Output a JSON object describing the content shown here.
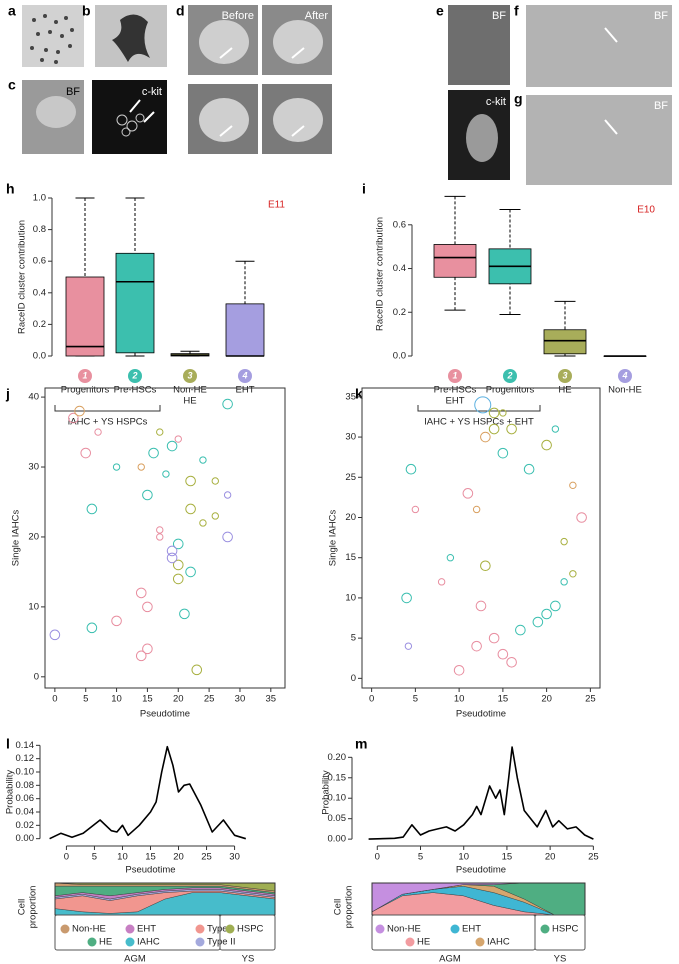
{
  "image_panels": [
    {
      "letter": "a"
    },
    {
      "letter": "b"
    },
    {
      "letter": "c",
      "labels": [
        "BF",
        "c-kit"
      ]
    },
    {
      "letter": "d",
      "labels": [
        "Before",
        "After"
      ]
    },
    {
      "letter": "e",
      "labels": [
        "BF",
        "c-kit"
      ]
    },
    {
      "letter": "f",
      "labels": [
        "BF"
      ]
    },
    {
      "letter": "g",
      "labels": [
        "BF"
      ]
    }
  ],
  "chart_data": [
    {
      "type": "box",
      "panel": "h",
      "tag": "E11",
      "ylabel": "RaceID cluster contribution",
      "ylim": [
        0,
        1
      ],
      "yticks": [
        {
          "value": 0,
          "label": "0.0"
        },
        0.2,
        0.4,
        0.6,
        0.8,
        {
          "value": 1,
          "label": "1.0"
        }
      ],
      "categories": [
        [
          "Progenitors"
        ],
        [
          "Pre-HSCs"
        ],
        [
          "Non-HE",
          "HE"
        ],
        [
          "EHT"
        ]
      ],
      "cluster_ids": [
        1,
        2,
        3,
        4
      ],
      "colors": [
        "#e8909f",
        "#3cbfae",
        "#a8ad5a",
        "#a59ee0"
      ],
      "boxes": [
        {
          "min": 0,
          "q1": 0,
          "median": 0.06,
          "q3": 0.5,
          "max": 1
        },
        {
          "min": 0,
          "q1": 0.02,
          "median": 0.47,
          "q3": 0.65,
          "max": 1
        },
        {
          "min": 0,
          "q1": 0,
          "median": 0.005,
          "q3": 0.015,
          "max": 0.03
        },
        {
          "min": 0,
          "q1": 0,
          "median": 0,
          "q3": 0.33,
          "max": 0.6
        }
      ],
      "group_label": "IAHC + YS HSPCs"
    },
    {
      "type": "box",
      "panel": "i",
      "tag": "E10",
      "ylabel": "RaceID cluster contribution",
      "ylim": [
        0,
        0.75
      ],
      "yticks": [
        {
          "value": 0,
          "label": "0.0"
        },
        0.2,
        0.4,
        0.6
      ],
      "categories": [
        [
          "Pre-HSCs",
          "EHT"
        ],
        [
          "Progenitors"
        ],
        [
          "HE"
        ],
        [
          "Non-HE"
        ]
      ],
      "cluster_ids": [
        1,
        2,
        3,
        4
      ],
      "colors": [
        "#e8909f",
        "#3cbfae",
        "#a8ad5a",
        "#a59ee0"
      ],
      "boxes": [
        {
          "min": 0.21,
          "q1": 0.36,
          "median": 0.45,
          "q3": 0.51,
          "max": 0.73
        },
        {
          "min": 0.19,
          "q1": 0.33,
          "median": 0.41,
          "q3": 0.49,
          "max": 0.67
        },
        {
          "min": 0,
          "q1": 0.01,
          "median": 0.07,
          "q3": 0.12,
          "max": 0.25
        },
        {
          "min": 0,
          "q1": 0,
          "median": 0,
          "q3": 0,
          "max": 0
        }
      ],
      "group_label": "IAHC + YS HSPCs + EHT"
    },
    {
      "type": "bubble",
      "panel": "j",
      "xlabel": "Pseudotime",
      "ylabel": "Single IAHCs",
      "xlim": [
        -1.6,
        37.3
      ],
      "xticks": [
        0,
        5,
        10,
        15,
        20,
        25,
        30,
        35
      ],
      "ylim": [
        -1.6,
        41.3
      ],
      "yticks": [
        0,
        10,
        20,
        30,
        40
      ],
      "series": [
        {
          "color": "#e88ea0",
          "x": [
            10,
            14,
            15,
            14,
            15,
            17,
            17,
            5,
            3,
            7,
            20
          ],
          "y": [
            8,
            3,
            4,
            12,
            10,
            20,
            21,
            32,
            37,
            35,
            34
          ],
          "sizes": [
            3,
            3,
            3,
            3,
            3,
            2,
            2,
            3,
            3,
            2,
            2
          ]
        },
        {
          "color": "#3bbfb0",
          "x": [
            6,
            21,
            22,
            20,
            15,
            24,
            6,
            28,
            19,
            16,
            10,
            18
          ],
          "y": [
            7,
            9,
            15,
            19,
            26,
            31,
            24,
            39,
            33,
            32,
            30,
            29
          ],
          "sizes": [
            3,
            3,
            3,
            3,
            3,
            2,
            3,
            3,
            3,
            3,
            2,
            2
          ]
        },
        {
          "color": "#a8b040",
          "x": [
            23,
            20,
            20,
            24,
            26,
            22,
            22,
            26,
            17
          ],
          "y": [
            1,
            14,
            16,
            22,
            23,
            24,
            28,
            28,
            35
          ],
          "sizes": [
            3,
            3,
            3,
            2,
            2,
            3,
            3,
            2,
            2
          ]
        },
        {
          "color": "#9a8fe0",
          "x": [
            0,
            19,
            19,
            28,
            28
          ],
          "y": [
            6,
            18,
            17,
            20,
            26
          ],
          "sizes": [
            3,
            3,
            3,
            3,
            2
          ]
        },
        {
          "color": "#d9a060",
          "x": [
            4,
            14
          ],
          "y": [
            38,
            30
          ],
          "sizes": [
            3,
            2
          ]
        }
      ]
    },
    {
      "type": "bubble",
      "panel": "k",
      "xlabel": "Pseudotime",
      "ylabel": "Single IAHCs",
      "xlim": [
        -1.1,
        26.1
      ],
      "xticks": [
        0,
        5,
        10,
        15,
        20,
        25
      ],
      "ylim": [
        -1.2,
        36.1
      ],
      "yticks": [
        0,
        5,
        10,
        15,
        20,
        25,
        30,
        35
      ],
      "series": [
        {
          "color": "#5ab0e0",
          "x": [
            12.7
          ],
          "y": [
            34
          ],
          "sizes": [
            5
          ]
        },
        {
          "color": "#3bbfb0",
          "x": [
            4.5,
            4,
            9,
            17,
            19,
            20,
            21,
            22,
            18,
            15,
            21
          ],
          "y": [
            26,
            10,
            15,
            6,
            7,
            8,
            9,
            12,
            26,
            28,
            31
          ],
          "sizes": [
            3,
            3,
            2,
            3,
            3,
            3,
            3,
            2,
            3,
            3,
            2
          ]
        },
        {
          "color": "#e88ea0",
          "x": [
            12,
            14,
            15,
            16,
            24,
            11,
            8,
            10,
            12.5,
            5
          ],
          "y": [
            4,
            5,
            3,
            2,
            20,
            23,
            12,
            1,
            9,
            21
          ],
          "sizes": [
            3,
            3,
            3,
            3,
            3,
            3,
            2,
            3,
            3,
            2
          ]
        },
        {
          "color": "#a8b040",
          "x": [
            23,
            22,
            13,
            20,
            16,
            14,
            14,
            15
          ],
          "y": [
            13,
            17,
            14,
            29,
            31,
            31,
            33,
            33
          ],
          "sizes": [
            2,
            2,
            3,
            3,
            3,
            3,
            3,
            2
          ]
        },
        {
          "color": "#d9a060",
          "x": [
            23,
            13,
            12
          ],
          "y": [
            24,
            30,
            21
          ],
          "sizes": [
            2,
            3,
            2
          ]
        },
        {
          "color": "#9a8fe0",
          "x": [
            4.2
          ],
          "y": [
            4
          ],
          "sizes": [
            2
          ]
        }
      ]
    },
    {
      "type": "line",
      "panel": "l",
      "xlabel": "Pseudotime",
      "ylabel": "Probability",
      "xlim": [
        -4,
        34
      ],
      "xticks": [
        0,
        5,
        10,
        15,
        20,
        25,
        30
      ],
      "ylim": [
        -0.005,
        0.145
      ],
      "yticks": [
        {
          "value": 0,
          "label": "0.00"
        },
        {
          "value": 0.02,
          "label": "0.02"
        },
        {
          "value": 0.04,
          "label": "0.04"
        },
        {
          "value": 0.06,
          "label": "0.06"
        },
        {
          "value": 0.08,
          "label": "0.08"
        },
        {
          "value": 0.1,
          "label": "0.10"
        },
        {
          "value": 0.12,
          "label": "0.12"
        },
        {
          "value": 0.14,
          "label": "0.14"
        }
      ],
      "x": [
        -3,
        -1,
        1,
        3,
        6,
        8,
        9,
        10,
        11,
        13,
        15,
        16,
        17,
        18,
        19,
        20,
        21,
        22,
        24,
        26,
        28,
        30,
        32
      ],
      "values": [
        0,
        0.008,
        0.002,
        0.008,
        0.028,
        0.012,
        0.01,
        0.02,
        0.005,
        0.02,
        0.04,
        0.055,
        0.1,
        0.138,
        0.11,
        0.07,
        0.08,
        0.082,
        0.05,
        0.01,
        0.028,
        0.005,
        0
      ]
    },
    {
      "type": "line",
      "panel": "m",
      "xlabel": "Pseudotime",
      "ylabel": "Probability",
      "xlim": [
        -2,
        26
      ],
      "xticks": [
        0,
        5,
        10,
        15,
        20,
        25
      ],
      "ylim": [
        -0.007,
        0.235
      ],
      "yticks": [
        {
          "value": 0,
          "label": "0.00"
        },
        {
          "value": 0.05,
          "label": "0.05"
        },
        {
          "value": 0.1,
          "label": "0.10"
        },
        {
          "value": 0.15,
          "label": "0.15"
        },
        {
          "value": 0.2,
          "label": "0.20"
        }
      ],
      "x": [
        -1,
        2,
        3,
        4,
        5,
        6,
        7,
        8,
        9,
        10,
        11,
        11.5,
        12,
        13,
        13.7,
        14.2,
        14.7,
        15.2,
        15.6,
        16.2,
        17,
        18.5,
        19.5,
        20.3,
        21,
        22,
        23,
        24,
        25
      ],
      "values": [
        0,
        0.002,
        0.005,
        0.035,
        0.01,
        0.02,
        0.025,
        0.03,
        0.02,
        0.035,
        0.06,
        0.08,
        0.06,
        0.13,
        0.1,
        0.12,
        0.06,
        0.15,
        0.225,
        0.15,
        0.07,
        0.03,
        0.07,
        0.03,
        0.045,
        0.025,
        0.03,
        0.01,
        0
      ]
    },
    {
      "type": "area",
      "ylabel": [
        "Cell",
        "proportion"
      ],
      "regions": [
        "AGM",
        "YS"
      ],
      "series": [
        {
          "name": "IAHC",
          "color": "#47bccb",
          "values": [
            0.2,
            0.1,
            0.05,
            0.1,
            0.5,
            0.7,
            0.7,
            0.6,
            0.5
          ]
        },
        {
          "name": "Type I",
          "color": "#f1968f",
          "values": [
            0.3,
            0.5,
            0.4,
            0.5,
            0.2,
            0.05,
            0.05,
            0.05,
            0.05
          ]
        },
        {
          "name": "Type II",
          "color": "#a4a9dd",
          "values": [
            0.05,
            0.05,
            0.05,
            0.05,
            0.05,
            0.05,
            0.05,
            0.05,
            0.05
          ]
        },
        {
          "name": "EHT",
          "color": "#c77fc3",
          "values": [
            0.05,
            0.05,
            0.1,
            0.05,
            0.05,
            0.05,
            0.05,
            0.05,
            0.05
          ]
        },
        {
          "name": "HE",
          "color": "#4fae82",
          "values": [
            0.3,
            0.2,
            0.3,
            0.2,
            0.1,
            0.05,
            0.05,
            0.05,
            0.05
          ]
        },
        {
          "name": "Non-HE",
          "color": "#c99a6e",
          "values": [
            0.1,
            0.05,
            0.05,
            0.05,
            0.05,
            0.05,
            0.05,
            0.05,
            0.05
          ]
        },
        {
          "name": "HSPC",
          "color": "#9fae52",
          "values": [
            0,
            0.05,
            0.05,
            0.05,
            0.05,
            0.05,
            0.05,
            0.15,
            0.25
          ]
        }
      ]
    },
    {
      "type": "area",
      "ylabel": [
        "Cell",
        "proportion"
      ],
      "regions": [
        "AGM",
        "YS"
      ],
      "series": [
        {
          "name": "HE",
          "color": "#f29ca0",
          "values": [
            0.1,
            0.6,
            0.7,
            0.6,
            0.3,
            0.1,
            0,
            0
          ]
        },
        {
          "name": "EHT",
          "color": "#3fb6d3",
          "values": [
            0,
            0.05,
            0.1,
            0.3,
            0.4,
            0.3,
            0,
            0
          ]
        },
        {
          "name": "IAHC",
          "color": "#d6a66e",
          "values": [
            0,
            0,
            0,
            0.05,
            0.2,
            0.1,
            0,
            0
          ]
        },
        {
          "name": "HSPC",
          "color": "#4fae82",
          "values": [
            0,
            0,
            0,
            0,
            0.05,
            0.5,
            1,
            1
          ]
        },
        {
          "name": "Non-HE",
          "color": "#c58fe0",
          "values": [
            0.9,
            0.35,
            0.2,
            0.05,
            0.05,
            0,
            0,
            0
          ]
        }
      ]
    }
  ]
}
